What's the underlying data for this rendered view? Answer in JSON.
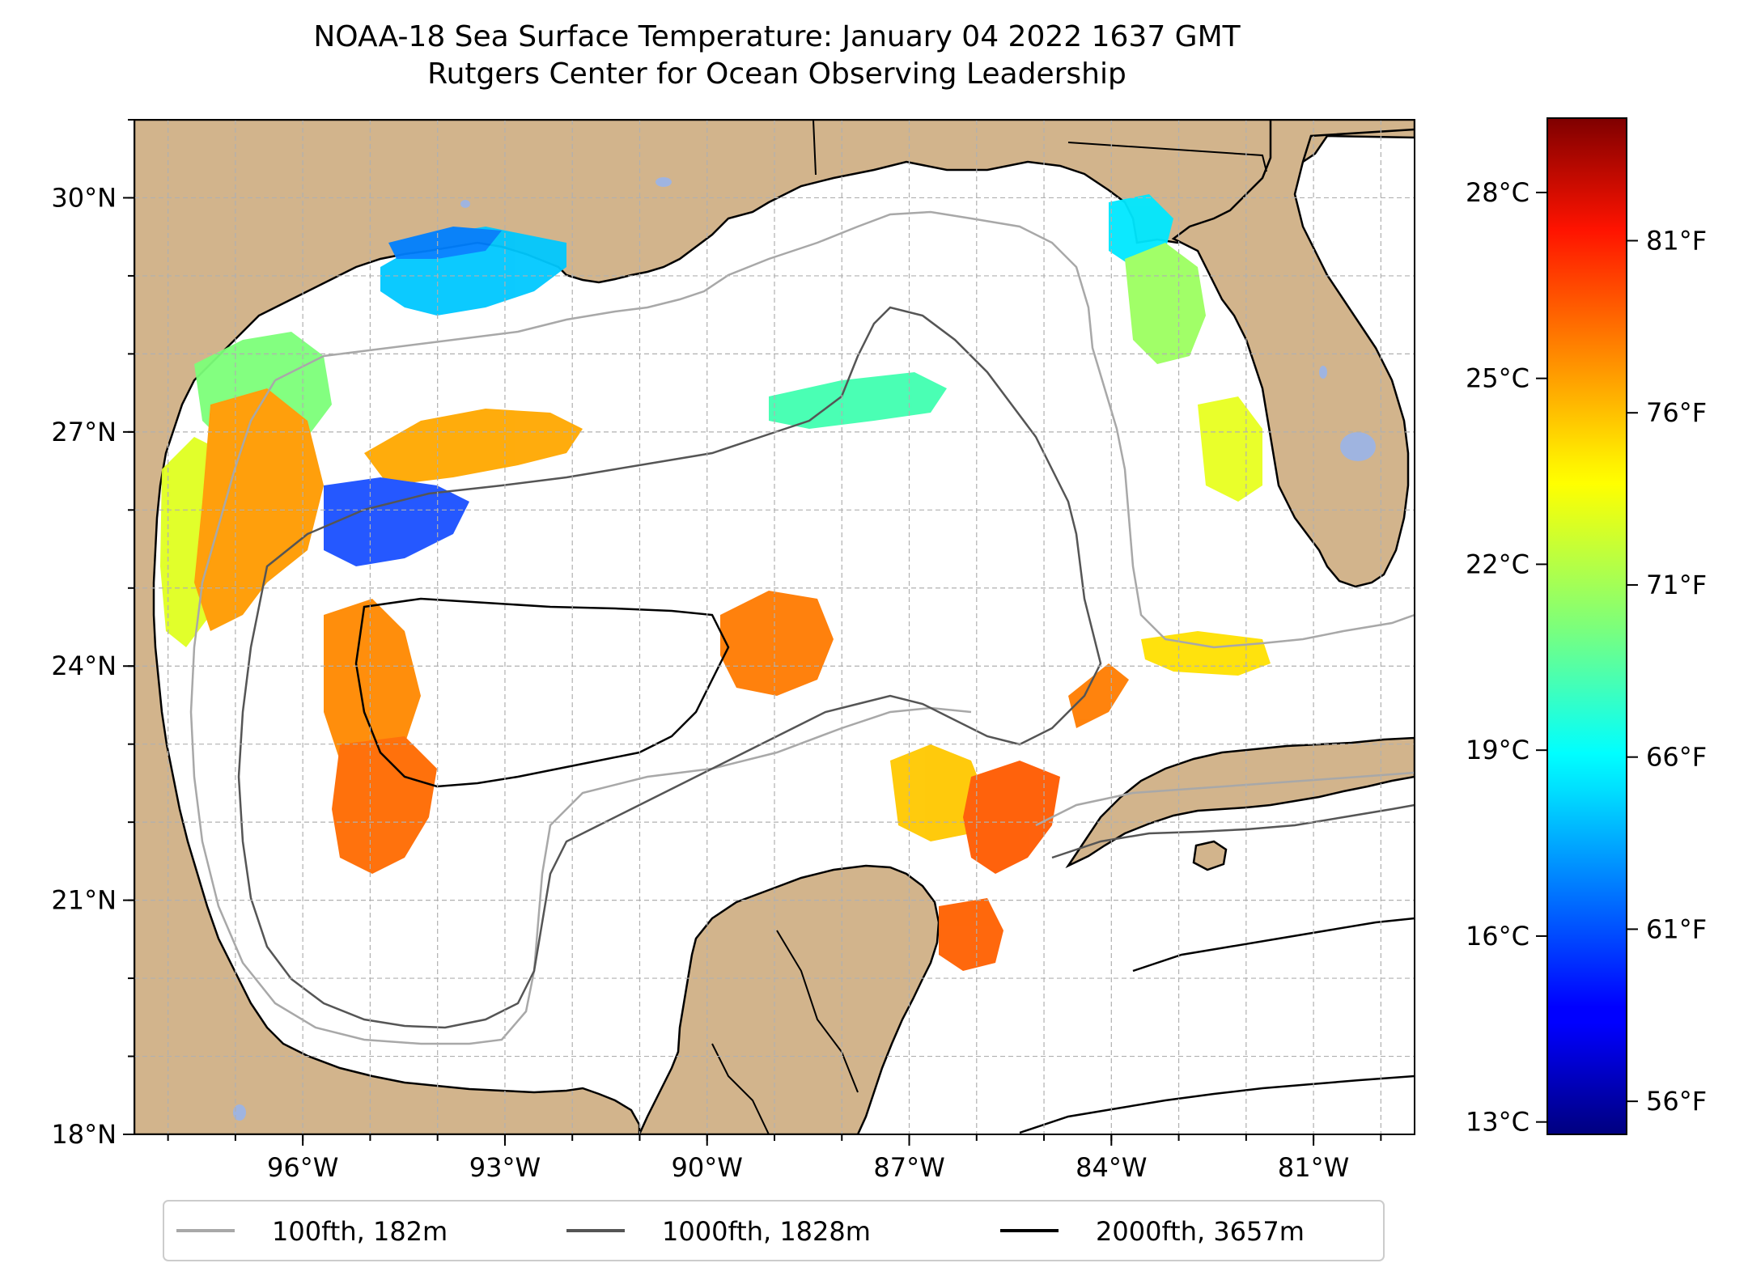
{
  "title_line1": "NOAA-18 Sea Surface Temperature: January 04 2022 1637 GMT",
  "title_line2": "Rutgers Center for Ocean Observing Leadership",
  "map": {
    "lon_range": [
      -98.5,
      -79.5
    ],
    "lat_range": [
      18,
      31
    ],
    "lon_ticks": [
      {
        "value": -96,
        "label": "96°W"
      },
      {
        "value": -93,
        "label": "93°W"
      },
      {
        "value": -90,
        "label": "90°W"
      },
      {
        "value": -87,
        "label": "87°W"
      },
      {
        "value": -84,
        "label": "84°W"
      },
      {
        "value": -81,
        "label": "81°W"
      }
    ],
    "lat_ticks": [
      {
        "value": 18,
        "label": "18°N"
      },
      {
        "value": 21,
        "label": "21°N"
      },
      {
        "value": 24,
        "label": "24°N"
      },
      {
        "value": 27,
        "label": "27°N"
      },
      {
        "value": 30,
        "label": "30°N"
      }
    ],
    "colors": {
      "land": "#d2b48c",
      "ocean": "#ffffff",
      "lakes": "#9fb4e0",
      "grid": "#b0b0b0"
    }
  },
  "colorbar": {
    "colormap": "jet",
    "celsius_range": [
      12.8,
      29.2
    ],
    "celsius_ticks": [
      {
        "value": 13,
        "label": "13°C"
      },
      {
        "value": 16,
        "label": "16°C"
      },
      {
        "value": 19,
        "label": "19°C"
      },
      {
        "value": 22,
        "label": "22°C"
      },
      {
        "value": 25,
        "label": "25°C"
      },
      {
        "value": 28,
        "label": "28°C"
      }
    ],
    "fahrenheit_ticks": [
      {
        "value": 56,
        "label": "56°F"
      },
      {
        "value": 61,
        "label": "61°F"
      },
      {
        "value": 66,
        "label": "66°F"
      },
      {
        "value": 71,
        "label": "71°F"
      },
      {
        "value": 76,
        "label": "76°F"
      },
      {
        "value": 81,
        "label": "81°F"
      }
    ]
  },
  "legend": [
    {
      "label": "100fth, 182m",
      "color": "#a8a8a8"
    },
    {
      "label": "1000fth, 1828m",
      "color": "#555555"
    },
    {
      "label": "2000fth, 3657m",
      "color": "#000000"
    }
  ]
}
